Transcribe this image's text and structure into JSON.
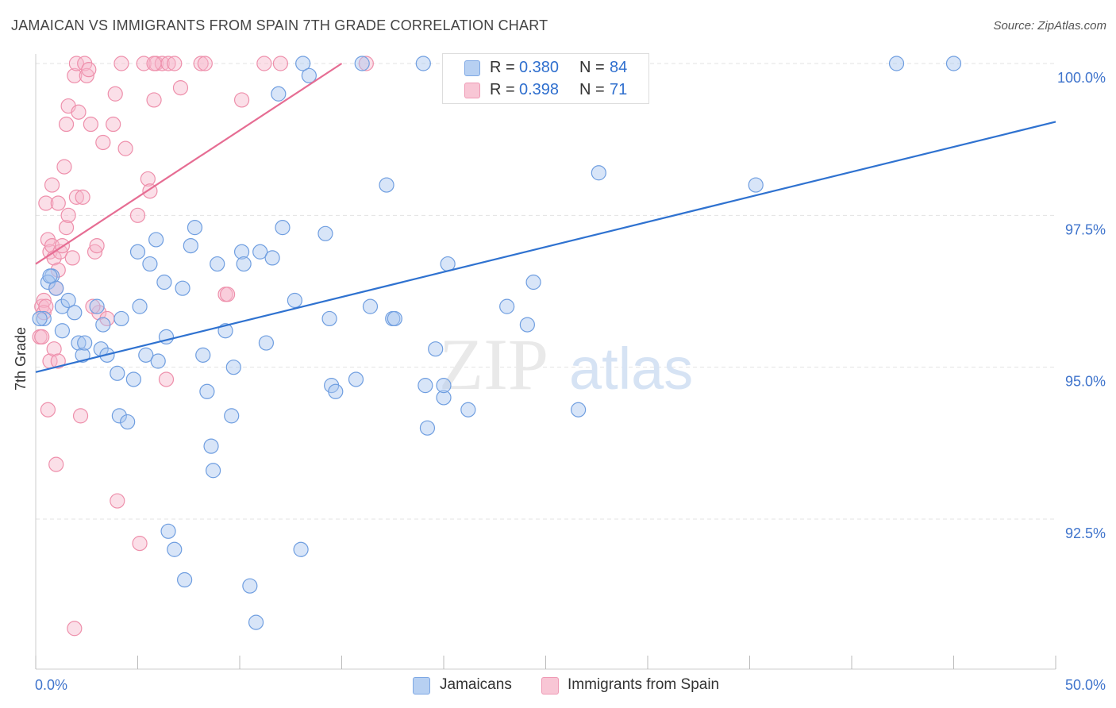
{
  "title": "JAMAICAN VS IMMIGRANTS FROM SPAIN 7TH GRADE CORRELATION CHART",
  "source": "Source: ZipAtlas.com",
  "watermark": {
    "zip": "ZIP",
    "atlas": "atlas"
  },
  "legend": {
    "rows": [
      {
        "r_label": "R =",
        "r_value": "0.380",
        "n_label": "N =",
        "n_value": "84"
      },
      {
        "r_label": "R =",
        "r_value": "0.398",
        "n_label": "N =",
        "n_value": "71"
      }
    ]
  },
  "bottom_legend": {
    "series1": "Jamaicans",
    "series2": "Immigrants from Spain"
  },
  "colors": {
    "blue_fill": "#a9c6ef",
    "blue_stroke": "#6f9ee0",
    "blue_line": "#2f72d0",
    "pink_fill": "#f6b9cc",
    "pink_stroke": "#ee8fab",
    "pink_line": "#e66d93",
    "grid": "#e3e3e3",
    "axis_text": "#3f74cc"
  },
  "chart_data": {
    "type": "scatter",
    "title": "JAMAICAN VS IMMIGRANTS FROM SPAIN 7TH GRADE CORRELATION CHART",
    "xlabel": "",
    "ylabel": "7th Grade",
    "xlim": [
      0,
      50
    ],
    "ylim": [
      90.2,
      100.2
    ],
    "x_tick_labels": [
      "0.0%",
      "50.0%"
    ],
    "y_ticks": [
      92.5,
      95.0,
      97.5,
      100.0
    ],
    "y_tick_labels": [
      "92.5%",
      "95.0%",
      "97.5%",
      "100.0%"
    ],
    "grid": true,
    "series": [
      {
        "name": "Jamaicans",
        "color": "#a9c6ef",
        "r": 0.38,
        "n": 84,
        "trend": {
          "x": [
            0.0,
            50.0
          ],
          "y": [
            94.92,
            99.04
          ]
        },
        "points": [
          [
            0.4,
            95.8
          ],
          [
            0.8,
            96.5
          ],
          [
            0.6,
            96.4
          ],
          [
            1.0,
            96.3
          ],
          [
            1.3,
            96.0
          ],
          [
            1.6,
            96.1
          ],
          [
            1.9,
            95.9
          ],
          [
            1.3,
            95.6
          ],
          [
            2.1,
            95.4
          ],
          [
            2.3,
            95.2
          ],
          [
            3.0,
            96.0
          ],
          [
            3.2,
            95.3
          ],
          [
            3.3,
            95.7
          ],
          [
            3.5,
            95.2
          ],
          [
            4.0,
            94.9
          ],
          [
            4.1,
            94.2
          ],
          [
            4.2,
            95.8
          ],
          [
            4.5,
            94.1
          ],
          [
            4.8,
            94.8
          ],
          [
            5.1,
            96.0
          ],
          [
            5.0,
            96.9
          ],
          [
            5.4,
            95.2
          ],
          [
            5.6,
            96.7
          ],
          [
            5.9,
            97.1
          ],
          [
            6.0,
            95.1
          ],
          [
            6.3,
            96.4
          ],
          [
            6.4,
            95.5
          ],
          [
            6.5,
            92.3
          ],
          [
            6.8,
            92.0
          ],
          [
            7.2,
            96.3
          ],
          [
            7.3,
            91.5
          ],
          [
            7.6,
            97.0
          ],
          [
            7.8,
            97.3
          ],
          [
            8.2,
            95.2
          ],
          [
            8.4,
            94.6
          ],
          [
            8.6,
            93.7
          ],
          [
            8.7,
            93.3
          ],
          [
            8.9,
            96.7
          ],
          [
            9.3,
            95.6
          ],
          [
            9.6,
            94.2
          ],
          [
            9.7,
            95.0
          ],
          [
            10.1,
            96.9
          ],
          [
            10.2,
            96.7
          ],
          [
            10.5,
            91.4
          ],
          [
            10.8,
            90.8
          ],
          [
            11.0,
            96.9
          ],
          [
            11.3,
            95.4
          ],
          [
            11.6,
            96.8
          ],
          [
            11.9,
            99.5
          ],
          [
            12.1,
            97.3
          ],
          [
            12.7,
            96.1
          ],
          [
            13.0,
            92.0
          ],
          [
            13.1,
            100.0
          ],
          [
            13.4,
            99.8
          ],
          [
            14.2,
            97.2
          ],
          [
            14.4,
            95.8
          ],
          [
            14.5,
            94.7
          ],
          [
            14.7,
            94.6
          ],
          [
            15.7,
            94.8
          ],
          [
            16.0,
            100.0
          ],
          [
            16.4,
            96.0
          ],
          [
            17.5,
            95.8
          ],
          [
            17.6,
            95.8
          ],
          [
            17.2,
            98.0
          ],
          [
            19.0,
            100.0
          ],
          [
            19.1,
            94.7
          ],
          [
            19.2,
            94.0
          ],
          [
            19.6,
            95.3
          ],
          [
            20.0,
            94.5
          ],
          [
            20.0,
            94.7
          ],
          [
            20.2,
            96.7
          ],
          [
            21.2,
            94.3
          ],
          [
            23.1,
            96.0
          ],
          [
            24.1,
            95.7
          ],
          [
            24.4,
            96.4
          ],
          [
            26.6,
            94.3
          ],
          [
            27.3,
            100.0
          ],
          [
            27.6,
            98.2
          ],
          [
            35.3,
            98.0
          ],
          [
            42.2,
            100.0
          ],
          [
            45.0,
            100.0
          ],
          [
            0.2,
            95.8
          ],
          [
            0.7,
            96.5
          ],
          [
            2.4,
            95.4
          ]
        ]
      },
      {
        "name": "Immigrants from Spain",
        "color": "#f6b9cc",
        "r": 0.398,
        "n": 71,
        "trend": {
          "x": [
            0.0,
            15.0
          ],
          "y": [
            96.7,
            100.0
          ]
        },
        "points": [
          [
            0.2,
            95.5
          ],
          [
            0.3,
            96.0
          ],
          [
            0.4,
            96.1
          ],
          [
            0.4,
            95.9
          ],
          [
            0.5,
            97.7
          ],
          [
            0.6,
            97.1
          ],
          [
            0.6,
            94.3
          ],
          [
            0.7,
            95.1
          ],
          [
            0.7,
            96.9
          ],
          [
            0.8,
            97.0
          ],
          [
            0.8,
            98.0
          ],
          [
            0.9,
            96.8
          ],
          [
            0.9,
            95.3
          ],
          [
            1.0,
            96.3
          ],
          [
            1.0,
            93.4
          ],
          [
            1.1,
            96.6
          ],
          [
            1.1,
            97.7
          ],
          [
            1.2,
            96.9
          ],
          [
            1.4,
            98.3
          ],
          [
            1.5,
            99.0
          ],
          [
            1.5,
            97.3
          ],
          [
            1.6,
            99.3
          ],
          [
            1.6,
            97.5
          ],
          [
            1.8,
            96.8
          ],
          [
            1.9,
            99.8
          ],
          [
            2.0,
            100.0
          ],
          [
            2.0,
            97.8
          ],
          [
            2.1,
            99.2
          ],
          [
            2.3,
            97.8
          ],
          [
            2.4,
            100.0
          ],
          [
            2.5,
            99.8
          ],
          [
            2.7,
            99.0
          ],
          [
            2.9,
            96.9
          ],
          [
            3.0,
            97.0
          ],
          [
            3.1,
            95.9
          ],
          [
            3.3,
            98.7
          ],
          [
            3.5,
            95.8
          ],
          [
            3.8,
            99.0
          ],
          [
            3.9,
            99.5
          ],
          [
            4.0,
            92.8
          ],
          [
            4.2,
            100.0
          ],
          [
            4.4,
            98.6
          ],
          [
            5.0,
            97.5
          ],
          [
            5.1,
            92.1
          ],
          [
            5.3,
            100.0
          ],
          [
            5.5,
            98.1
          ],
          [
            5.6,
            97.9
          ],
          [
            5.8,
            99.4
          ],
          [
            5.9,
            100.0
          ],
          [
            6.2,
            100.0
          ],
          [
            6.4,
            94.8
          ],
          [
            6.5,
            100.0
          ],
          [
            6.8,
            100.0
          ],
          [
            7.1,
            99.6
          ],
          [
            8.1,
            100.0
          ],
          [
            9.3,
            96.2
          ],
          [
            9.4,
            96.2
          ],
          [
            10.1,
            99.4
          ],
          [
            11.2,
            100.0
          ],
          [
            12.0,
            100.0
          ],
          [
            16.2,
            100.0
          ],
          [
            1.9,
            90.7
          ],
          [
            2.2,
            94.2
          ],
          [
            1.1,
            95.1
          ],
          [
            0.3,
            95.5
          ],
          [
            2.6,
            99.9
          ],
          [
            5.8,
            100.0
          ],
          [
            8.3,
            100.0
          ],
          [
            2.8,
            96.0
          ],
          [
            1.3,
            97.0
          ],
          [
            0.5,
            96.0
          ]
        ]
      }
    ]
  }
}
